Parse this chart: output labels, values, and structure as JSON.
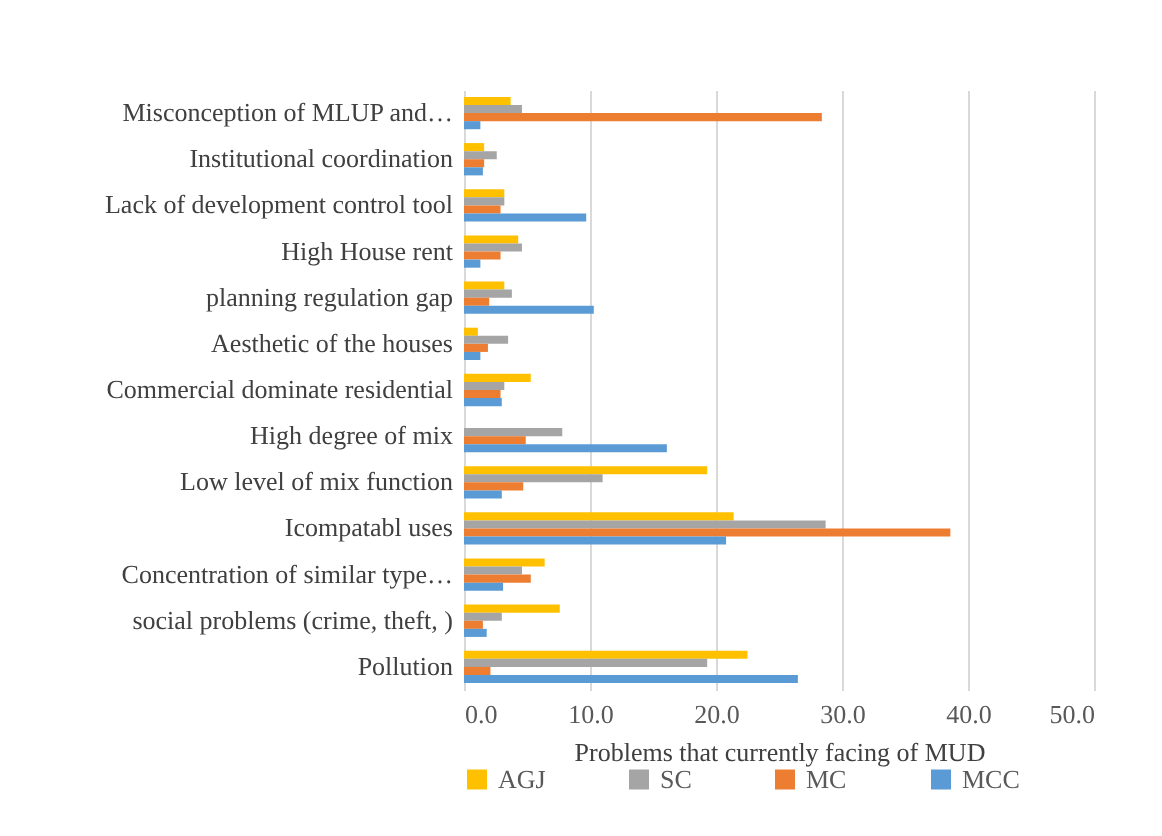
{
  "chart_data": {
    "type": "bar",
    "orientation": "horizontal",
    "xlabel": "Problems that currently facing  of MUD",
    "categories": [
      "Misconception of MLUP and…",
      "Institutional coordination",
      "Lack of development control tool",
      "High  House rent ",
      "planning regulation gap",
      "Aesthetic of the houses",
      "Commercial  dominate residential",
      "High degree of mix",
      "Low level of mix function",
      "Icompatabl uses",
      "Concentration of  similar type…",
      "social problems (crime, theft, )",
      "Pollution"
    ],
    "series": [
      {
        "name": "AGJ",
        "color": "#ffc000",
        "values": [
          3.7,
          1.6,
          3.2,
          4.3,
          3.2,
          1.1,
          5.3,
          0,
          19.3,
          21.4,
          6.4,
          7.6,
          22.5
        ]
      },
      {
        "name": "SC",
        "color": "#a5a5a5",
        "values": [
          4.6,
          2.6,
          3.2,
          4.6,
          3.8,
          3.5,
          3.2,
          7.8,
          11.0,
          28.7,
          4.6,
          3.0,
          19.3
        ]
      },
      {
        "name": "MC",
        "color": "#ed7d31",
        "values": [
          28.4,
          1.6,
          2.9,
          2.9,
          2.0,
          1.9,
          2.9,
          4.9,
          4.7,
          38.6,
          5.3,
          1.5,
          2.1
        ]
      },
      {
        "name": "MCC",
        "color": "#5b9bd5",
        "values": [
          1.3,
          1.5,
          9.7,
          1.3,
          10.3,
          1.3,
          3.0,
          16.1,
          3.0,
          20.8,
          3.1,
          1.8,
          26.5
        ]
      }
    ],
    "xlim": [
      0,
      50
    ],
    "xticks": [
      {
        "value": 0,
        "label": "0.0"
      },
      {
        "value": 10,
        "label": "10.0"
      },
      {
        "value": 20,
        "label": "20.0"
      },
      {
        "value": 30,
        "label": "30.0"
      },
      {
        "value": 40,
        "label": "40.0"
      },
      {
        "value": 50,
        "label": "50.0"
      }
    ],
    "grid": "x",
    "legend": "bottom"
  }
}
